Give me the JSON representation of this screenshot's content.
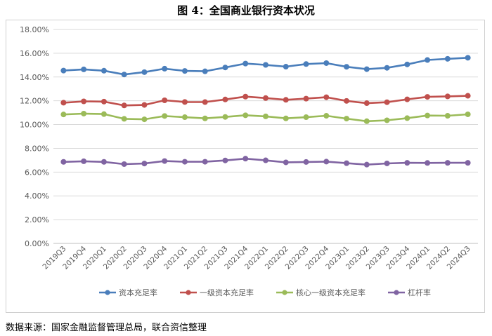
{
  "figure": {
    "title": "图 4：全国商业银行资本状况",
    "source": "数据来源：国家金融监督管理总局，联合资信整理"
  },
  "chart_data": {
    "type": "line",
    "title": "",
    "xlabel": "",
    "ylabel": "",
    "ylim": [
      0,
      18
    ],
    "ytick_step": 2,
    "y_tick_format": "percent_2dp",
    "grid": true,
    "legend_position": "bottom",
    "categories": [
      "2019Q3",
      "2019Q4",
      "2020Q1",
      "2020Q2",
      "2020Q3",
      "2020Q4",
      "2021Q1",
      "2021Q2",
      "2021Q3",
      "2021Q4",
      "2022Q1",
      "2022Q2",
      "2022Q3",
      "2022Q4",
      "2023Q1",
      "2023Q2",
      "2023Q3",
      "2023Q4",
      "2024Q1",
      "2024Q2",
      "2024Q3"
    ],
    "series": [
      {
        "name": "资本充足率",
        "color": "#4a7ebb",
        "values": [
          14.54,
          14.64,
          14.53,
          14.21,
          14.41,
          14.7,
          14.51,
          14.48,
          14.8,
          15.13,
          15.02,
          14.87,
          15.09,
          15.17,
          14.86,
          14.66,
          14.77,
          15.06,
          15.43,
          15.53,
          15.62
        ]
      },
      {
        "name": "一级资本充足率",
        "color": "#c0504d",
        "values": [
          11.84,
          11.95,
          11.93,
          11.61,
          11.65,
          12.04,
          11.9,
          11.89,
          12.11,
          12.35,
          12.23,
          12.08,
          12.18,
          12.3,
          11.99,
          11.8,
          11.88,
          12.12,
          12.33,
          12.37,
          12.42
        ]
      },
      {
        "name": "核心一级资本充足率",
        "color": "#9bbb59",
        "values": [
          10.85,
          10.92,
          10.88,
          10.48,
          10.44,
          10.72,
          10.62,
          10.52,
          10.64,
          10.78,
          10.69,
          10.52,
          10.62,
          10.74,
          10.5,
          10.28,
          10.36,
          10.54,
          10.76,
          10.74,
          10.86
        ]
      },
      {
        "name": "杠杆率",
        "color": "#8064a2",
        "values": [
          6.86,
          6.91,
          6.86,
          6.67,
          6.72,
          6.93,
          6.87,
          6.87,
          6.98,
          7.13,
          6.99,
          6.82,
          6.85,
          6.88,
          6.75,
          6.63,
          6.73,
          6.78,
          6.77,
          6.78,
          6.78
        ]
      }
    ]
  }
}
